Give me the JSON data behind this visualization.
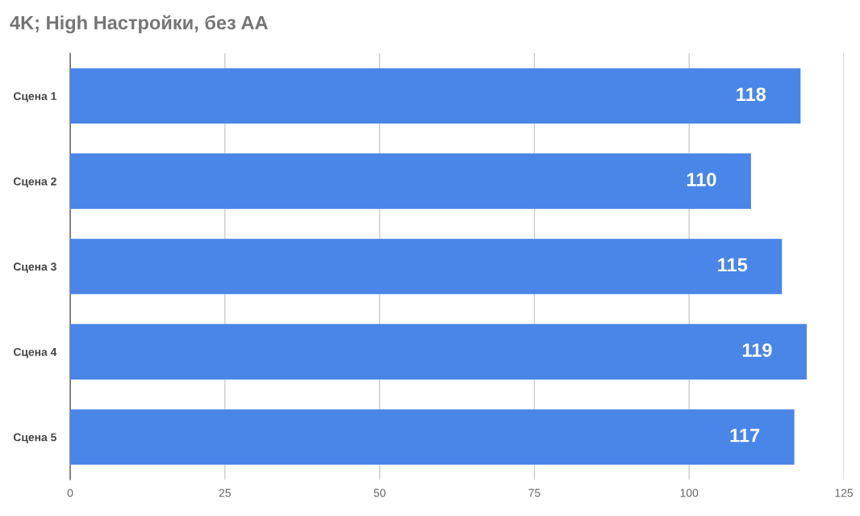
{
  "chart_data": {
    "type": "bar",
    "orientation": "horizontal",
    "title": "4K; High Настройки, без AA",
    "categories": [
      "Сцена 1",
      "Сцена 2",
      "Сцена 3",
      "Сцена 4",
      "Сцена 5"
    ],
    "values": [
      118,
      110,
      115,
      119,
      117
    ],
    "color": "#4a86e8",
    "xlim": [
      0,
      125
    ],
    "xticks": [
      0,
      25,
      50,
      75,
      100,
      125
    ],
    "grid": "x",
    "data_labels": true,
    "legend": false
  }
}
